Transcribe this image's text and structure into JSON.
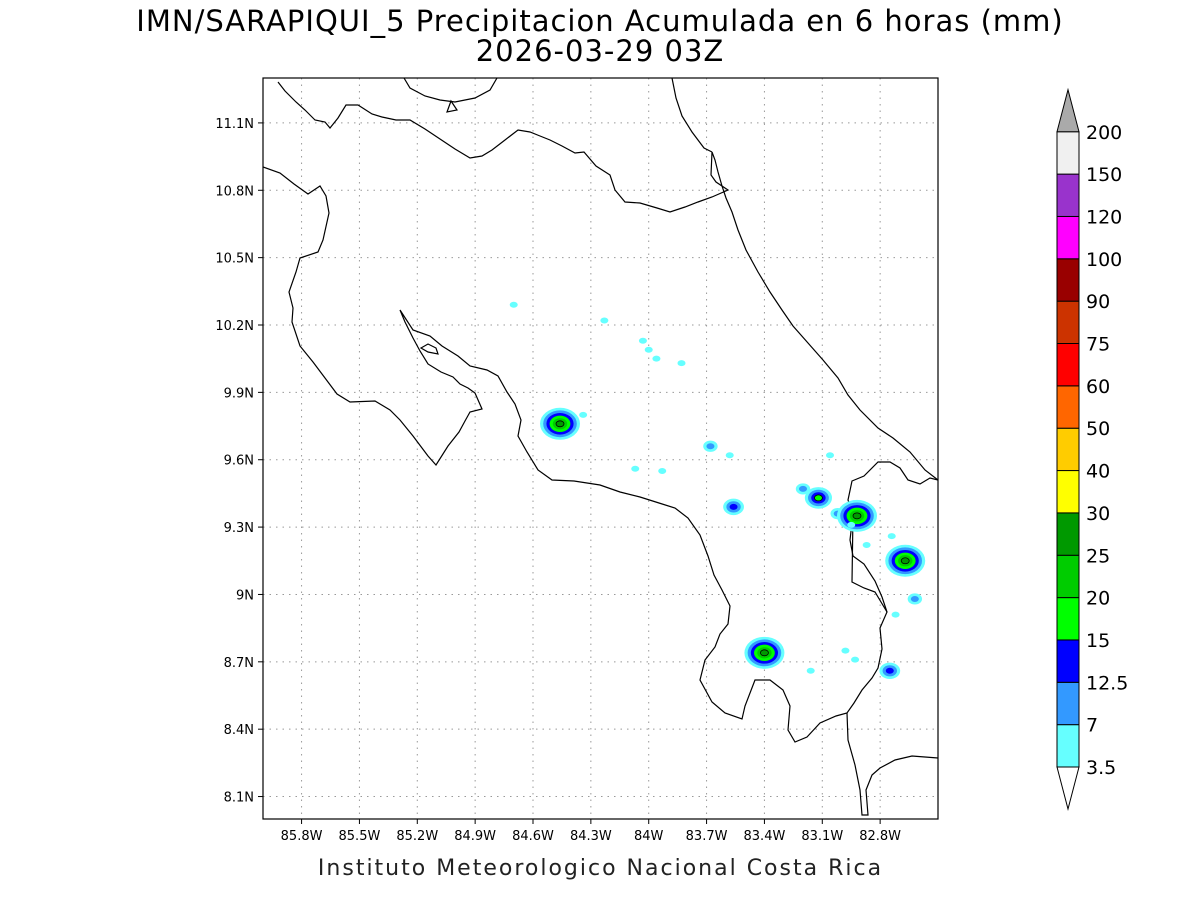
{
  "title": {
    "line1": "IMN/SARAPIQUI_5 Precipitacion Acumulada en 6 horas (mm)",
    "line2": "2026-03-29 03Z"
  },
  "footer": "Instituto Meteorologico Nacional Costa Rica",
  "map": {
    "lon_range": [
      -86.0,
      -82.5
    ],
    "lat_range": [
      8.0,
      11.3
    ],
    "x_ticks": [
      {
        "lon": -85.8,
        "label": "85.8W"
      },
      {
        "lon": -85.5,
        "label": "85.5W"
      },
      {
        "lon": -85.2,
        "label": "85.2W"
      },
      {
        "lon": -84.9,
        "label": "84.9W"
      },
      {
        "lon": -84.6,
        "label": "84.6W"
      },
      {
        "lon": -84.3,
        "label": "84.3W"
      },
      {
        "lon": -84.0,
        "label": "84W"
      },
      {
        "lon": -83.7,
        "label": "83.7W"
      },
      {
        "lon": -83.4,
        "label": "83.4W"
      },
      {
        "lon": -83.1,
        "label": "83.1W"
      },
      {
        "lon": -82.8,
        "label": "82.8W"
      }
    ],
    "y_ticks": [
      {
        "lat": 11.1,
        "label": "11.1N"
      },
      {
        "lat": 10.8,
        "label": "10.8N"
      },
      {
        "lat": 10.5,
        "label": "10.5N"
      },
      {
        "lat": 10.2,
        "label": "10.2N"
      },
      {
        "lat": 9.9,
        "label": "9.9N"
      },
      {
        "lat": 9.6,
        "label": "9.6N"
      },
      {
        "lat": 9.3,
        "label": "9.3N"
      },
      {
        "lat": 9.0,
        "label": "9N"
      },
      {
        "lat": 8.7,
        "label": "8.7N"
      },
      {
        "lat": 8.4,
        "label": "8.4N"
      },
      {
        "lat": 8.1,
        "label": "8.1N"
      }
    ],
    "grid": true,
    "precip_cells": [
      {
        "lon": -84.46,
        "lat": 9.76,
        "max_level": 25
      },
      {
        "lon": -84.34,
        "lat": 9.8,
        "max_level": 3.5
      },
      {
        "lon": -84.7,
        "lat": 10.29,
        "max_level": 3.5
      },
      {
        "lon": -84.23,
        "lat": 10.22,
        "max_level": 3.5
      },
      {
        "lon": -84.03,
        "lat": 10.13,
        "max_level": 3.5
      },
      {
        "lon": -84.0,
        "lat": 10.09,
        "max_level": 3.5
      },
      {
        "lon": -83.96,
        "lat": 10.05,
        "max_level": 3.5
      },
      {
        "lon": -83.83,
        "lat": 10.03,
        "max_level": 3.5
      },
      {
        "lon": -83.68,
        "lat": 9.66,
        "max_level": 7
      },
      {
        "lon": -83.58,
        "lat": 9.62,
        "max_level": 3.5
      },
      {
        "lon": -84.07,
        "lat": 9.56,
        "max_level": 3.5
      },
      {
        "lon": -83.93,
        "lat": 9.55,
        "max_level": 3.5
      },
      {
        "lon": -83.56,
        "lat": 9.39,
        "max_level": 12.5
      },
      {
        "lon": -83.4,
        "lat": 8.74,
        "max_level": 25
      },
      {
        "lon": -83.2,
        "lat": 9.47,
        "max_level": 7
      },
      {
        "lon": -83.12,
        "lat": 9.43,
        "max_level": 15
      },
      {
        "lon": -83.02,
        "lat": 9.36,
        "max_level": 7
      },
      {
        "lon": -82.92,
        "lat": 9.35,
        "max_level": 25
      },
      {
        "lon": -82.95,
        "lat": 9.31,
        "max_level": 3.5
      },
      {
        "lon": -82.87,
        "lat": 9.22,
        "max_level": 3.5
      },
      {
        "lon": -82.74,
        "lat": 9.26,
        "max_level": 3.5
      },
      {
        "lon": -82.67,
        "lat": 9.15,
        "max_level": 25
      },
      {
        "lon": -82.62,
        "lat": 8.98,
        "max_level": 7
      },
      {
        "lon": -82.72,
        "lat": 8.91,
        "max_level": 3.5
      },
      {
        "lon": -82.98,
        "lat": 8.75,
        "max_level": 3.5
      },
      {
        "lon": -82.93,
        "lat": 8.71,
        "max_level": 3.5
      },
      {
        "lon": -82.75,
        "lat": 8.66,
        "max_level": 12.5
      },
      {
        "lon": -83.16,
        "lat": 8.66,
        "max_level": 3.5
      },
      {
        "lon": -83.06,
        "lat": 9.62,
        "max_level": 3.5
      }
    ]
  },
  "colorbar": {
    "levels": [
      {
        "value": "3.5",
        "color": "#66ffff"
      },
      {
        "value": "7",
        "color": "#3399ff"
      },
      {
        "value": "12.5",
        "color": "#0000ff"
      },
      {
        "value": "15",
        "color": "#00ff00"
      },
      {
        "value": "20",
        "color": "#00cc00"
      },
      {
        "value": "25",
        "color": "#009900"
      },
      {
        "value": "30",
        "color": "#ffff00"
      },
      {
        "value": "40",
        "color": "#ffcc00"
      },
      {
        "value": "50",
        "color": "#ff6600"
      },
      {
        "value": "60",
        "color": "#ff0000"
      },
      {
        "value": "75",
        "color": "#cc3300"
      },
      {
        "value": "90",
        "color": "#990000"
      },
      {
        "value": "100",
        "color": "#ff00ff"
      },
      {
        "value": "120",
        "color": "#9933cc"
      },
      {
        "value": "150",
        "color": "#f0f0f0"
      },
      {
        "value": "200",
        "color": "#aaaaaa"
      }
    ]
  }
}
